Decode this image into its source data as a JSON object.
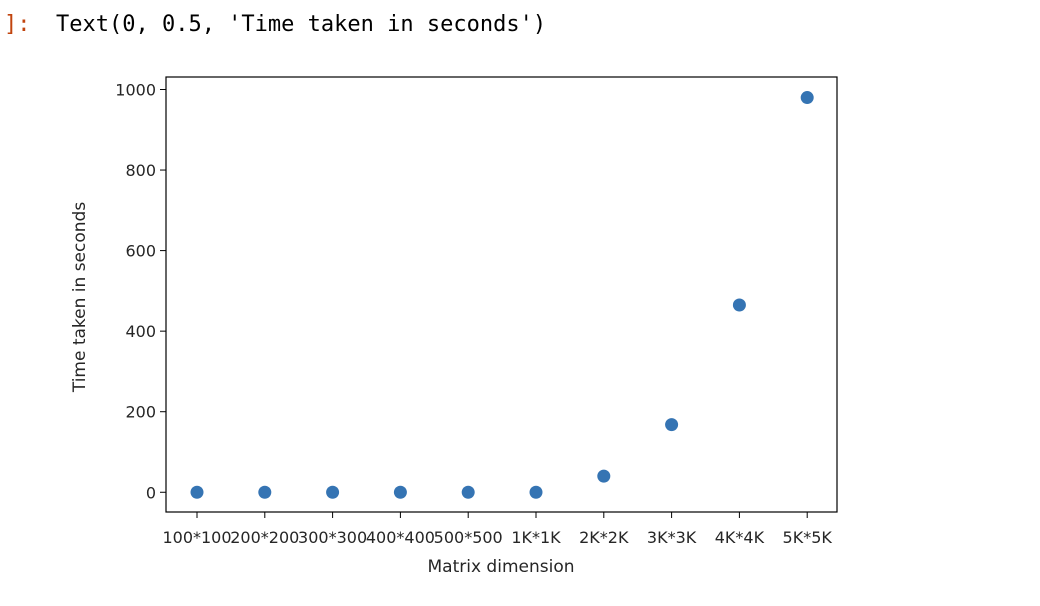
{
  "output": {
    "prompt": "]:",
    "repr": "Text(0, 0.5, 'Time taken in seconds')"
  },
  "chart_data": {
    "type": "scatter",
    "categories": [
      "100*100",
      "200*200",
      "300*300",
      "400*400",
      "500*500",
      "1K*1K",
      "2K*2K",
      "3K*3K",
      "4K*4K",
      "5K*5K"
    ],
    "series": [
      {
        "values": [
          0,
          0,
          0,
          0,
          0,
          0,
          40,
          168,
          465,
          980
        ],
        "color": "#3574b3"
      }
    ],
    "title": "",
    "xlabel": "Matrix dimension",
    "ylabel": "Time taken in seconds",
    "ylim": [
      -49,
      1031
    ],
    "yticks": [
      0,
      200,
      400,
      600,
      800,
      1000
    ],
    "grid": false,
    "legend": false
  }
}
